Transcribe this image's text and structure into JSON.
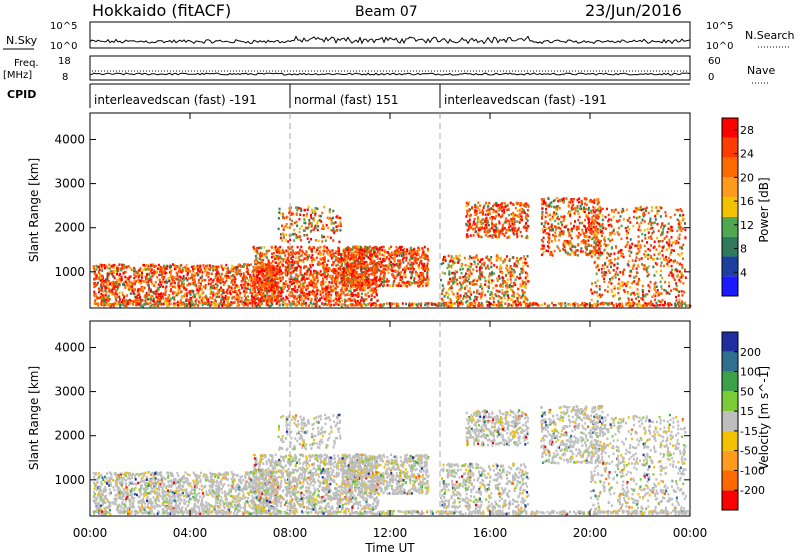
{
  "header": {
    "station": "Hokkaido (fitACF)",
    "beam": "Beam 07",
    "date": "23/Jun/2016"
  },
  "strip_labels": {
    "nsky": "N.Sky",
    "nsky_ticks": [
      "10^5",
      "10^0"
    ],
    "nsearch": "N.Search",
    "nsearch_ticks": [
      "10^5",
      "10^0"
    ],
    "freq": "Freq.",
    "freq_unit": "[MHz]",
    "freq_ticks": [
      "18",
      "8"
    ],
    "nave": "Nave",
    "nave_ticks": [
      "60",
      "0"
    ],
    "cpid": "CPID"
  },
  "cpid_segments": [
    {
      "label": "interleavedscan (fast) -191",
      "start_h": 0,
      "end_h": 8
    },
    {
      "label": "normal (fast) 151",
      "start_h": 8,
      "end_h": 14
    },
    {
      "label": "interleavedscan (fast) -191",
      "start_h": 14,
      "end_h": 24
    }
  ],
  "chart_data": [
    {
      "type": "heatmap",
      "xlabel": "Time UT",
      "ylabel": "Slant Range [km]",
      "x_ticks": [
        "00:00",
        "04:00",
        "08:00",
        "12:00",
        "16:00",
        "20:00",
        "00:00"
      ],
      "xlim_hours": [
        0,
        24
      ],
      "y_ticks": [
        1000,
        2000,
        3000,
        4000
      ],
      "ylim": [
        180,
        4600
      ],
      "colorbar": {
        "label": "Power [dB]",
        "ticks": [
          4,
          8,
          12,
          16,
          20,
          24,
          28
        ],
        "range": [
          0,
          30
        ],
        "colors": [
          "#1a1aff",
          "#1f3fa0",
          "#2e7a5a",
          "#4fa84f",
          "#f2c200",
          "#ff9c1e",
          "#ff6a00",
          "#ff3c00",
          "#ff0000"
        ]
      }
    },
    {
      "type": "heatmap",
      "xlabel": "Time UT",
      "ylabel": "Slant Range [km]",
      "x_ticks": [
        "00:00",
        "04:00",
        "08:00",
        "12:00",
        "16:00",
        "20:00",
        "00:00"
      ],
      "xlim_hours": [
        0,
        24
      ],
      "y_ticks": [
        1000,
        2000,
        3000,
        4000
      ],
      "ylim": [
        180,
        4600
      ],
      "colorbar": {
        "label": "Velocity [m s^-1]",
        "ticks": [
          200,
          100,
          50,
          15,
          -15,
          -50,
          -100,
          -200
        ],
        "colors": [
          "#1f2fa0",
          "#2f6f8f",
          "#3aa04a",
          "#7ccc3a",
          "#bebebe",
          "#f2c200",
          "#ff9c1e",
          "#ff6a00",
          "#ff0000"
        ]
      }
    }
  ]
}
